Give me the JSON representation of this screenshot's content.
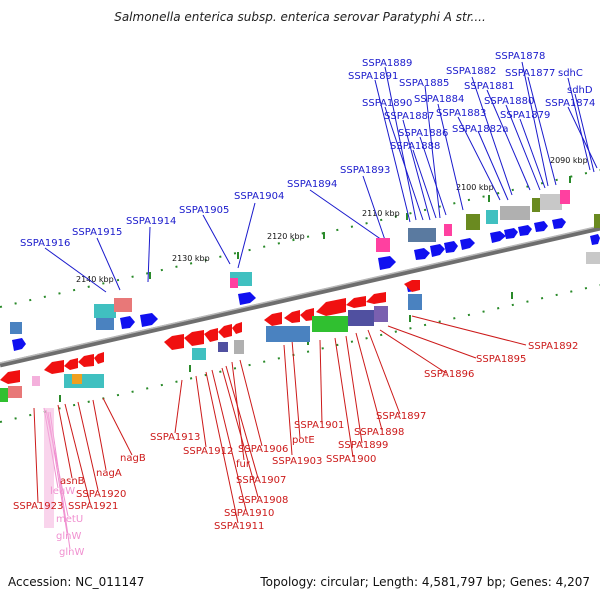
{
  "title": "Salmonella enterica subsp. enterica serovar Paratyphi A str....",
  "accession": "Accession: NC_011147",
  "summary": "Topology: circular; Length: 4,581,797 bp; Genes: 4,207",
  "colors": {
    "backbone": "#808080",
    "forward_label": "#1a1acc",
    "reverse_label": "#cc1a1a",
    "rna_label": "#f090d0",
    "forward_gene": "#1010f0",
    "reverse_gene": "#f01010",
    "tick": "#2a8a2a"
  },
  "scale_labels": [
    "2090 kbp",
    "2100 kbp",
    "2110 kbp",
    "2120 kbp",
    "2130 kbp",
    "2140 kbp"
  ],
  "top_labels": [
    "SSPA1889",
    "SSPA1891",
    "SSPA1885",
    "SSPA1882",
    "SSPA1878",
    "SSPA1877",
    "sdhC",
    "SSPA1881",
    "sdhD",
    "SSPA1884",
    "SSPA1880",
    "SSPA1874",
    "SSPA1890",
    "SSPA1887",
    "SSPA1883",
    "SSPA1879",
    "SSPA1882a",
    "SSPA1886",
    "SSPA1888",
    "SSPA1893",
    "SSPA1894",
    "SSPA1904",
    "SSPA1905",
    "SSPA1914",
    "SSPA1915",
    "SSPA1916"
  ],
  "bottom_labels": [
    "SSPA1892",
    "SSPA1895",
    "SSPA1896",
    "SSPA1897",
    "SSPA1898",
    "SSPA1899",
    "SSPA1900",
    "SSPA1901",
    "potE",
    "SSPA1903",
    "SSPA1906",
    "fur",
    "SSPA1907",
    "SSPA1908",
    "SSPA1910",
    "SSPA1911",
    "SSPA1912",
    "SSPA1913",
    "nagB",
    "nagA",
    "asnB",
    "SSPA1920",
    "SSPA1921",
    "SSPA1923"
  ],
  "rna_labels": [
    "leuW",
    "metU",
    "glnW",
    "glnW"
  ]
}
